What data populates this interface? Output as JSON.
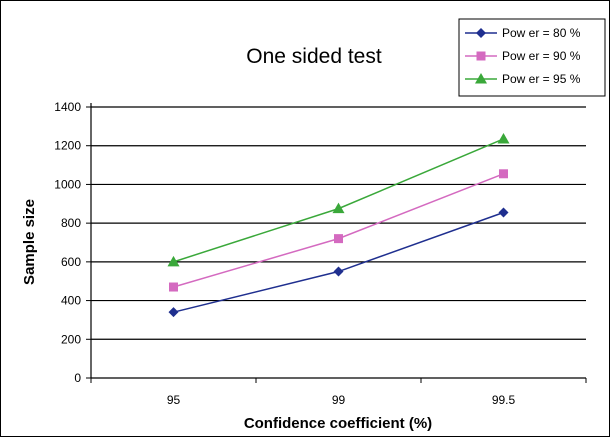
{
  "chart_data": {
    "type": "line",
    "title": "One sided test",
    "xlabel": "Confidence coefficient (%)",
    "ylabel": "Sample size",
    "categories": [
      "95",
      "99",
      "99.5"
    ],
    "ylim": [
      0,
      1400
    ],
    "yticks": [
      0,
      200,
      400,
      600,
      800,
      1000,
      1200,
      1400
    ],
    "grid": "horizontal",
    "legend_position": "top-right",
    "series": [
      {
        "name": "Pow er = 80 %",
        "values": [
          340,
          550,
          855
        ],
        "color": "#1f2f8f",
        "marker": "diamond"
      },
      {
        "name": "Pow er = 90 %",
        "values": [
          470,
          720,
          1055
        ],
        "color": "#d46ac0",
        "marker": "square"
      },
      {
        "name": "Pow er = 95 %",
        "values": [
          600,
          875,
          1235
        ],
        "color": "#3aa83a",
        "marker": "triangle"
      }
    ]
  }
}
